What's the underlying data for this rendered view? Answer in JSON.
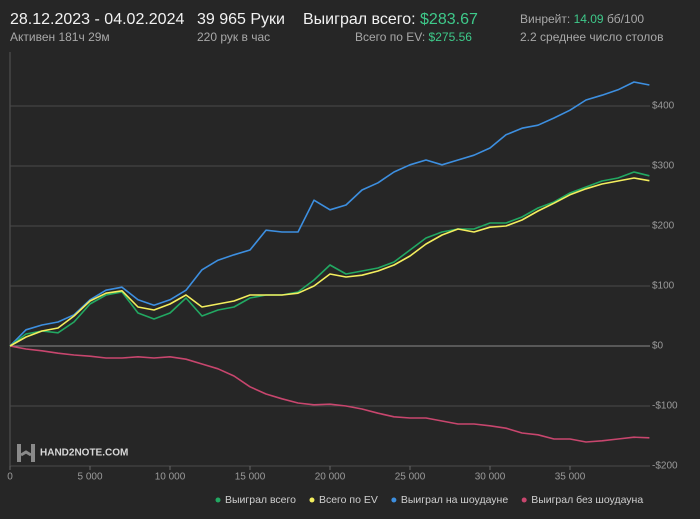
{
  "header": {
    "dates": "28.12.2023 - 04.02.2024",
    "active": "Активен 181ч 29м",
    "hands": "39 965 Руки",
    "rate": "220 рук в час",
    "won_label": "Выиграл всего:",
    "won_value": "$283.67",
    "ev_label": "Всего по EV:",
    "ev_value": "$275.56",
    "winrate_label": "Винрейт:",
    "winrate_value": "14.09",
    "winrate_unit": "бб/100",
    "tables": "2.2 среднее число столов",
    "logo": "HAND2NOTE.COM"
  },
  "chart_data": {
    "type": "line",
    "x": [
      0,
      1000,
      2000,
      3000,
      4000,
      5000,
      6000,
      7000,
      8000,
      9000,
      10000,
      11000,
      12000,
      13000,
      14000,
      15000,
      16000,
      17000,
      18000,
      19000,
      20000,
      21000,
      22000,
      23000,
      24000,
      25000,
      26000,
      27000,
      28000,
      29000,
      30000,
      31000,
      32000,
      33000,
      34000,
      35000,
      36000,
      37000,
      38000,
      39000,
      39965
    ],
    "series": [
      {
        "name": "Выиграл всего",
        "color": "#22a862",
        "values": [
          0,
          20,
          25,
          22,
          40,
          70,
          85,
          90,
          55,
          45,
          55,
          80,
          50,
          60,
          65,
          80,
          85,
          85,
          90,
          110,
          135,
          120,
          125,
          130,
          140,
          160,
          180,
          190,
          195,
          195,
          205,
          205,
          215,
          230,
          240,
          255,
          265,
          275,
          280,
          290,
          283.67
        ]
      },
      {
        "name": "Всего по EV",
        "color": "#f3ee5e",
        "values": [
          0,
          15,
          25,
          30,
          50,
          75,
          88,
          92,
          65,
          60,
          70,
          85,
          65,
          70,
          75,
          85,
          85,
          85,
          88,
          100,
          120,
          115,
          118,
          125,
          135,
          150,
          170,
          185,
          195,
          190,
          198,
          200,
          210,
          225,
          238,
          252,
          262,
          270,
          275,
          280,
          275.56
        ]
      },
      {
        "name": "Выиграл на шоудауне",
        "color": "#3d8fe0",
        "values": [
          0,
          27,
          35,
          40,
          52,
          77,
          93,
          98,
          77,
          68,
          77,
          93,
          127,
          143,
          152,
          160,
          193,
          190,
          190,
          243,
          227,
          235,
          260,
          272,
          290,
          302,
          310,
          302,
          310,
          318,
          330,
          352,
          363,
          368,
          380,
          393,
          410,
          418,
          427,
          440,
          435
        ]
      },
      {
        "name": "Выиграл без шоудауна",
        "color": "#c8466e",
        "values": [
          0,
          -5,
          -8,
          -12,
          -15,
          -17,
          -20,
          -20,
          -18,
          -20,
          -18,
          -22,
          -30,
          -38,
          -50,
          -68,
          -80,
          -88,
          -95,
          -98,
          -97,
          -100,
          -105,
          -112,
          -118,
          -120,
          -120,
          -125,
          -130,
          -130,
          -133,
          -137,
          -145,
          -148,
          -155,
          -155,
          -160,
          -158,
          -155,
          -152,
          -153
        ]
      }
    ],
    "xlim": [
      0,
      40000
    ],
    "xticks": [
      0,
      {
        "value": 5000,
        "label": "5 000"
      },
      {
        "value": 10000,
        "label": "10 000"
      },
      {
        "value": 15000,
        "label": "15 000"
      },
      {
        "value": 20000,
        "label": "20 000"
      },
      {
        "value": 25000,
        "label": "25 000"
      },
      {
        "value": 30000,
        "label": "30 000"
      },
      {
        "value": 35000,
        "label": "35 000"
      }
    ],
    "ylim": [
      -200,
      490
    ],
    "yticks": [
      {
        "value": -200,
        "label": "-$200"
      },
      {
        "value": -100,
        "label": "-$100"
      },
      {
        "value": 0,
        "label": "$0"
      },
      {
        "value": 100,
        "label": "$100"
      },
      {
        "value": 200,
        "label": "$200"
      },
      {
        "value": 300,
        "label": "$300"
      },
      {
        "value": 400,
        "label": "$400"
      }
    ],
    "grid": true,
    "legend": "bottom"
  }
}
